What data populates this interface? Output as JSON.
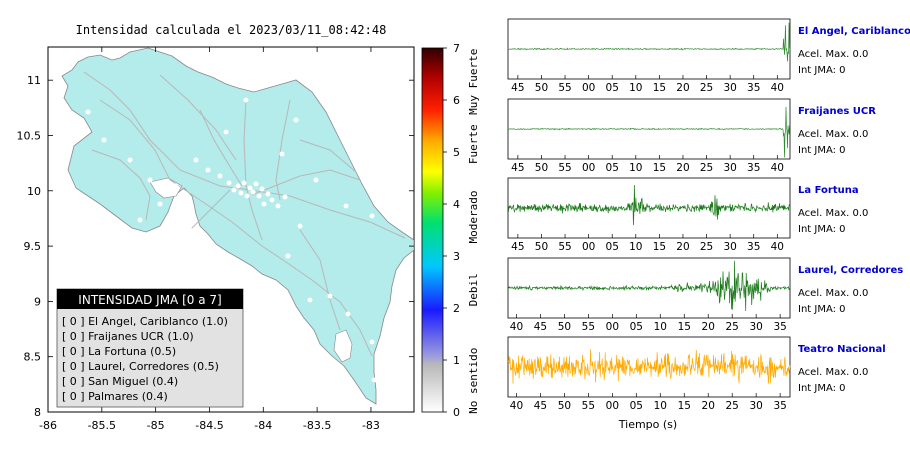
{
  "map": {
    "title": "Intensidad calculada el 2023/03/11_08:42:48",
    "x_ticks": [
      "-86",
      "-85.5",
      "-85",
      "-84.5",
      "-84",
      "-83.5",
      "-83"
    ],
    "y_ticks": [
      "11",
      "10.5",
      "10",
      "9.5",
      "9",
      "8.5",
      "8"
    ],
    "xlim": [
      -86,
      -82.6
    ],
    "ylim": [
      8,
      11.3
    ],
    "land_color": "#b4ebeb",
    "legend": {
      "title": "INTENSIDAD JMA [0 a 7]",
      "items": [
        "[ 0 ]  El Angel, Cariblanco (1.0)",
        "[ 0 ]  Fraijanes UCR (1.0)",
        "[ 0 ]  La Fortuna (0.5)",
        "[ 0 ]  Laurel, Corredores (0.5)",
        "[ 0 ]  San Miguel (0.4)",
        "[ 0 ]  Palmares (0.4)"
      ]
    }
  },
  "colorbar": {
    "ticks": [
      "0",
      "1",
      "2",
      "3",
      "4",
      "5",
      "6",
      "7"
    ],
    "labels": [
      "No sentido",
      "Debil",
      "Moderado",
      "Fuerte",
      "Muy Fuerte"
    ],
    "range": [
      0,
      7
    ]
  },
  "xlabel": "Tiempo (s)",
  "chart_data": [
    {
      "type": "line",
      "station": "El Angel, Cariblanco",
      "accel": "Acel. Max. 0.0",
      "int": "Int JMA: 0",
      "color": "#2e8b2e",
      "x_ticks": [
        "45",
        "50",
        "55",
        "00",
        "05",
        "10",
        "15",
        "20",
        "25",
        "30",
        "35",
        "40"
      ],
      "activity": "burst at end"
    },
    {
      "type": "line",
      "station": "Fraijanes UCR",
      "accel": "Acel. Max. 0.0",
      "int": "Int JMA: 0",
      "color": "#2e8b2e",
      "x_ticks": [
        "45",
        "50",
        "55",
        "00",
        "05",
        "10",
        "15",
        "20",
        "25",
        "30",
        "35",
        "40"
      ],
      "activity": "burst at end"
    },
    {
      "type": "line",
      "station": "La Fortuna",
      "accel": "Acel. Max. 0.0",
      "int": "Int JMA: 0",
      "color": "#1a7a1a",
      "x_ticks": [
        "45",
        "50",
        "55",
        "00",
        "05",
        "10",
        "15",
        "20",
        "25",
        "30",
        "35",
        "40"
      ],
      "activity": "continuous noise, bursts near 12 and 28"
    },
    {
      "type": "line",
      "station": "Laurel, Corredores",
      "accel": "Acel. Max. 0.0",
      "int": "Int JMA: 0",
      "color": "#1a7a1a",
      "x_ticks": [
        "40",
        "45",
        "50",
        "55",
        "00",
        "05",
        "10",
        "15",
        "20",
        "25",
        "30",
        "35"
      ],
      "activity": "continuous noise, event 20-30"
    },
    {
      "type": "line",
      "station": "Teatro Nacional",
      "accel": "Acel. Max. 0.0",
      "int": "Int JMA: 0",
      "color": "#ffaa00",
      "x_ticks": [
        "40",
        "45",
        "50",
        "55",
        "00",
        "05",
        "10",
        "15",
        "20",
        "25",
        "30",
        "35"
      ],
      "activity": "strong continuous noise"
    }
  ]
}
